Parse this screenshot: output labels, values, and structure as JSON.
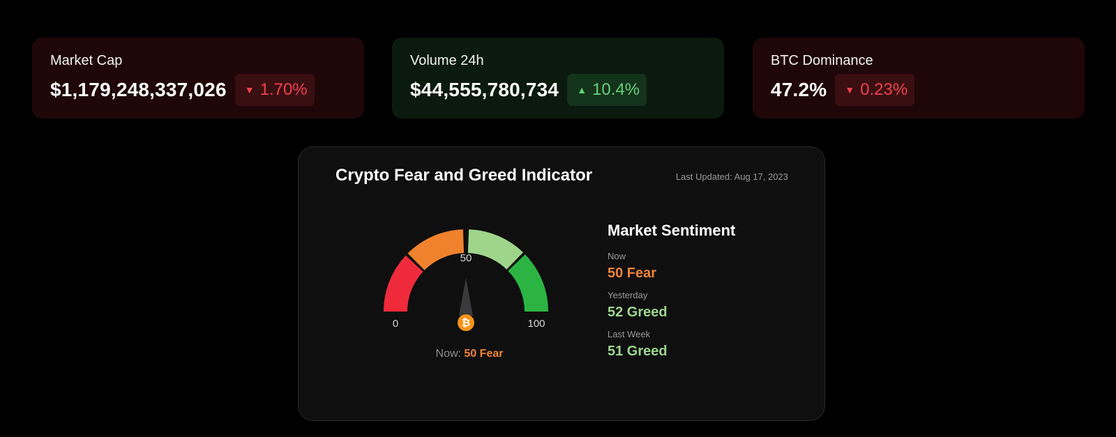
{
  "stats": [
    {
      "label": "Market Cap",
      "value": "$1,179,248,337,026",
      "change": "1.70%",
      "direction": "down"
    },
    {
      "label": "Volume 24h",
      "value": "$44,555,780,734",
      "change": "10.4%",
      "direction": "up"
    },
    {
      "label": "BTC Dominance",
      "value": "47.2%",
      "change": "0.23%",
      "direction": "down"
    }
  ],
  "indicator": {
    "title": "Crypto Fear and Greed Indicator",
    "last_updated": "Last Updated: Aug 17, 2023",
    "gauge": {
      "value": 50,
      "min_label": "0",
      "mid_label": "50",
      "max_label": "100",
      "segment_colors": [
        "#ee2a3b",
        "#f0822d",
        "#9ed58b",
        "#2cb443"
      ],
      "needle_icon": "bitcoin-icon"
    },
    "now_caption_prefix": "Now:",
    "now_caption_value": "50 Fear"
  },
  "sentiment": {
    "title": "Market Sentiment",
    "items": [
      {
        "label": "Now",
        "value": "50 Fear",
        "tone": "fear"
      },
      {
        "label": "Yesterday",
        "value": "52 Greed",
        "tone": "greed"
      },
      {
        "label": "Last Week",
        "value": "51 Greed",
        "tone": "greed"
      }
    ]
  },
  "colors": {
    "down": "#f0424c",
    "up": "#66d17a",
    "fear": "#f0843a",
    "greed": "#9dd58e",
    "bitcoin": "#f7931a"
  }
}
